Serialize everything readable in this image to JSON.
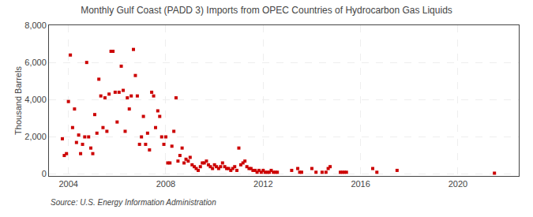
{
  "chart_data": {
    "type": "scatter",
    "title": "Monthly Gulf Coast (PADD 3) Imports from OPEC Countries of Hydrocarbon Gas Liquids",
    "ylabel": "Thousand Barrels",
    "annotations": [
      "Source: U.S. Energy Information Administration"
    ],
    "color": "#cc0000",
    "marker": "square",
    "grid": true,
    "xlim": [
      2003.2,
      2022.5
    ],
    "ylim": [
      -100,
      8000
    ],
    "xticks": [
      2004,
      2008,
      2012,
      2016,
      2020
    ],
    "yticks": [
      0,
      {
        "value": 2000,
        "label": "2,000"
      },
      {
        "value": 4000,
        "label": "4,000"
      },
      {
        "value": 6000,
        "label": "6,000"
      },
      {
        "value": 8000,
        "label": "8,000"
      }
    ],
    "x": [
      2003.75,
      2003.83,
      2003.92,
      2004.0,
      2004.08,
      2004.17,
      2004.25,
      2004.33,
      2004.42,
      2004.5,
      2004.58,
      2004.67,
      2004.75,
      2004.83,
      2004.92,
      2005.0,
      2005.08,
      2005.17,
      2005.25,
      2005.33,
      2005.42,
      2005.5,
      2005.58,
      2005.67,
      2005.75,
      2005.83,
      2005.92,
      2006.0,
      2006.08,
      2006.17,
      2006.25,
      2006.33,
      2006.42,
      2006.5,
      2006.58,
      2006.67,
      2006.75,
      2006.83,
      2006.92,
      2007.0,
      2007.08,
      2007.17,
      2007.25,
      2007.33,
      2007.42,
      2007.5,
      2007.58,
      2007.67,
      2007.75,
      2007.83,
      2007.92,
      2008.0,
      2008.08,
      2008.17,
      2008.25,
      2008.33,
      2008.42,
      2008.5,
      2008.58,
      2008.67,
      2008.75,
      2008.83,
      2008.92,
      2009.0,
      2009.08,
      2009.17,
      2009.25,
      2009.33,
      2009.42,
      2009.5,
      2009.58,
      2009.67,
      2009.75,
      2009.83,
      2009.92,
      2010.0,
      2010.08,
      2010.17,
      2010.25,
      2010.33,
      2010.42,
      2010.5,
      2010.58,
      2010.67,
      2010.75,
      2010.83,
      2010.92,
      2011.0,
      2011.08,
      2011.17,
      2011.25,
      2011.33,
      2011.42,
      2011.5,
      2011.58,
      2011.67,
      2011.75,
      2011.83,
      2011.92,
      2012.0,
      2012.08,
      2012.17,
      2012.25,
      2012.33,
      2012.42,
      2012.5,
      2012.58,
      2013.17,
      2013.42,
      2013.5,
      2013.58,
      2014.0,
      2014.17,
      2014.42,
      2014.58,
      2014.67,
      2014.75,
      2015.17,
      2015.25,
      2015.33,
      2015.42,
      2016.5,
      2016.67,
      2017.5,
      2021.5
    ],
    "values": [
      1900,
      1000,
      1100,
      3900,
      6400,
      2500,
      3500,
      1700,
      2100,
      1100,
      1600,
      2000,
      6000,
      2000,
      1400,
      1100,
      3200,
      2200,
      5100,
      4200,
      2500,
      4100,
      2300,
      4300,
      6600,
      6600,
      4400,
      2800,
      4400,
      5800,
      4500,
      2300,
      4100,
      3500,
      4200,
      6700,
      5300,
      4200,
      1600,
      2000,
      3100,
      1600,
      2200,
      1300,
      4400,
      4200,
      2500,
      3400,
      3100,
      2000,
      1600,
      2000,
      600,
      600,
      1500,
      2300,
      4100,
      700,
      1000,
      1400,
      600,
      800,
      700,
      900,
      500,
      400,
      300,
      200,
      400,
      600,
      600,
      700,
      500,
      400,
      300,
      500,
      400,
      300,
      400,
      600,
      400,
      300,
      300,
      200,
      300,
      400,
      200,
      1400,
      500,
      600,
      700,
      400,
      300,
      300,
      200,
      200,
      100,
      200,
      100,
      200,
      100,
      100,
      100,
      200,
      100,
      100,
      100,
      200,
      300,
      100,
      100,
      300,
      100,
      100,
      100,
      300,
      400,
      100,
      100,
      100,
      100,
      300,
      100,
      200,
      50
    ]
  }
}
